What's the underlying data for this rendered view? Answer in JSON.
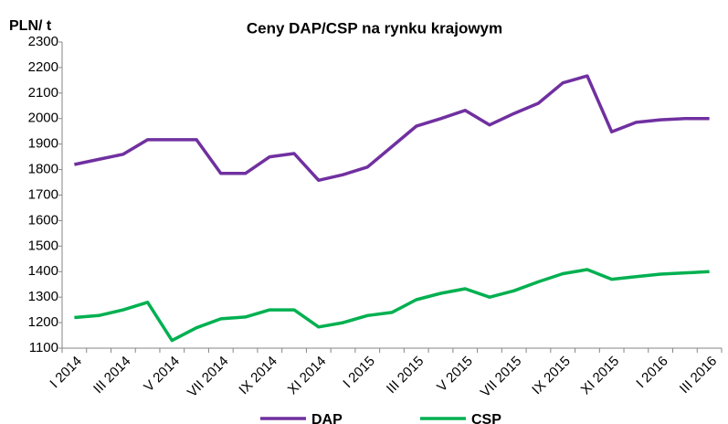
{
  "chart_data": {
    "type": "line",
    "title": "Ceny DAP/CSP  na rynku krajowym",
    "y_label": "PLN/ t",
    "categories": [
      "I 2014",
      null,
      "III 2014",
      null,
      "V 2014",
      null,
      "VII 2014",
      null,
      "IX 2014",
      null,
      "XI 2014",
      null,
      "I 2015",
      null,
      "III 2015",
      null,
      "V 2015",
      null,
      "VII 2015",
      null,
      "IX 2015",
      null,
      "XI 2015",
      null,
      "I 2016",
      null,
      "III 2016"
    ],
    "series": [
      {
        "name": "DAP",
        "color": "#7030a0",
        "values": [
          1820,
          1840,
          1860,
          1917,
          1917,
          1917,
          1785,
          1785,
          1850,
          1863,
          1758,
          1780,
          1810,
          1890,
          1970,
          2000,
          2032,
          1975,
          2020,
          2060,
          2140,
          2167,
          1948,
          1985,
          1995,
          2000,
          2000
        ]
      },
      {
        "name": "CSP",
        "color": "#00b050",
        "values": [
          1220,
          1228,
          1250,
          1280,
          1130,
          1180,
          1215,
          1222,
          1250,
          1250,
          1183,
          1200,
          1228,
          1240,
          1290,
          1315,
          1333,
          1300,
          1325,
          1360,
          1392,
          1408,
          1370,
          1380,
          1390,
          1395,
          1400
        ]
      }
    ],
    "ylim": [
      1100,
      2300
    ],
    "yticks": [
      1100,
      1200,
      1300,
      1400,
      1500,
      1600,
      1700,
      1800,
      1900,
      2000,
      2100,
      2200,
      2300
    ],
    "grid": false,
    "legend": "bottom"
  }
}
